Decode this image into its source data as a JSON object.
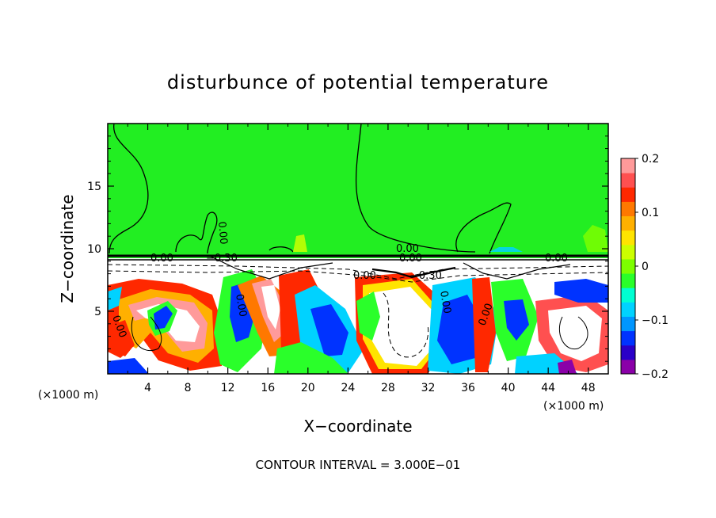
{
  "chart_data": {
    "type": "heatmap",
    "title": "disturbunce of potential temperature",
    "xlabel": "X−coordinate",
    "ylabel": "Z−coordinate",
    "x_unit_note": "(×1000 m)",
    "y_unit_note": "(×1000 m)",
    "xlim": [
      0,
      50
    ],
    "ylim": [
      0,
      20
    ],
    "x_ticks": [
      4,
      8,
      12,
      16,
      20,
      24,
      28,
      32,
      36,
      40,
      44,
      48
    ],
    "x_tick_labels": [
      "4",
      "8",
      "12",
      "16",
      "20",
      "24",
      "28",
      "32",
      "36",
      "40",
      "44",
      "48"
    ],
    "y_ticks": [
      5,
      10,
      15
    ],
    "y_tick_labels": [
      "5",
      "10",
      "15"
    ],
    "colorbar": {
      "min": -0.2,
      "max": 0.2,
      "labeled_ticks": [
        0.2,
        0.1,
        0,
        -0.1,
        -0.2
      ],
      "labels": [
        "0.2",
        "0.1",
        "0",
        "−0.1",
        "−0.2"
      ],
      "colors": [
        "#8a00a8",
        "#2a00c8",
        "#0033ff",
        "#0096ff",
        "#00d2ff",
        "#00ffd2",
        "#2aff2a",
        "#7dff00",
        "#ccff00",
        "#ffe400",
        "#ffb000",
        "#ff7800",
        "#ff2800",
        "#ff5050",
        "#ff9a9a"
      ]
    },
    "contour_labels": [
      "0.00",
      "0.00",
      "0.00",
      "0.00",
      "0.00",
      "0.00",
      "0.00",
      "0.00",
      "0.00",
      "−0.30",
      "−0.30",
      "0.00"
    ],
    "footer": "CONTOUR INTERVAL = 3.000E−01"
  }
}
